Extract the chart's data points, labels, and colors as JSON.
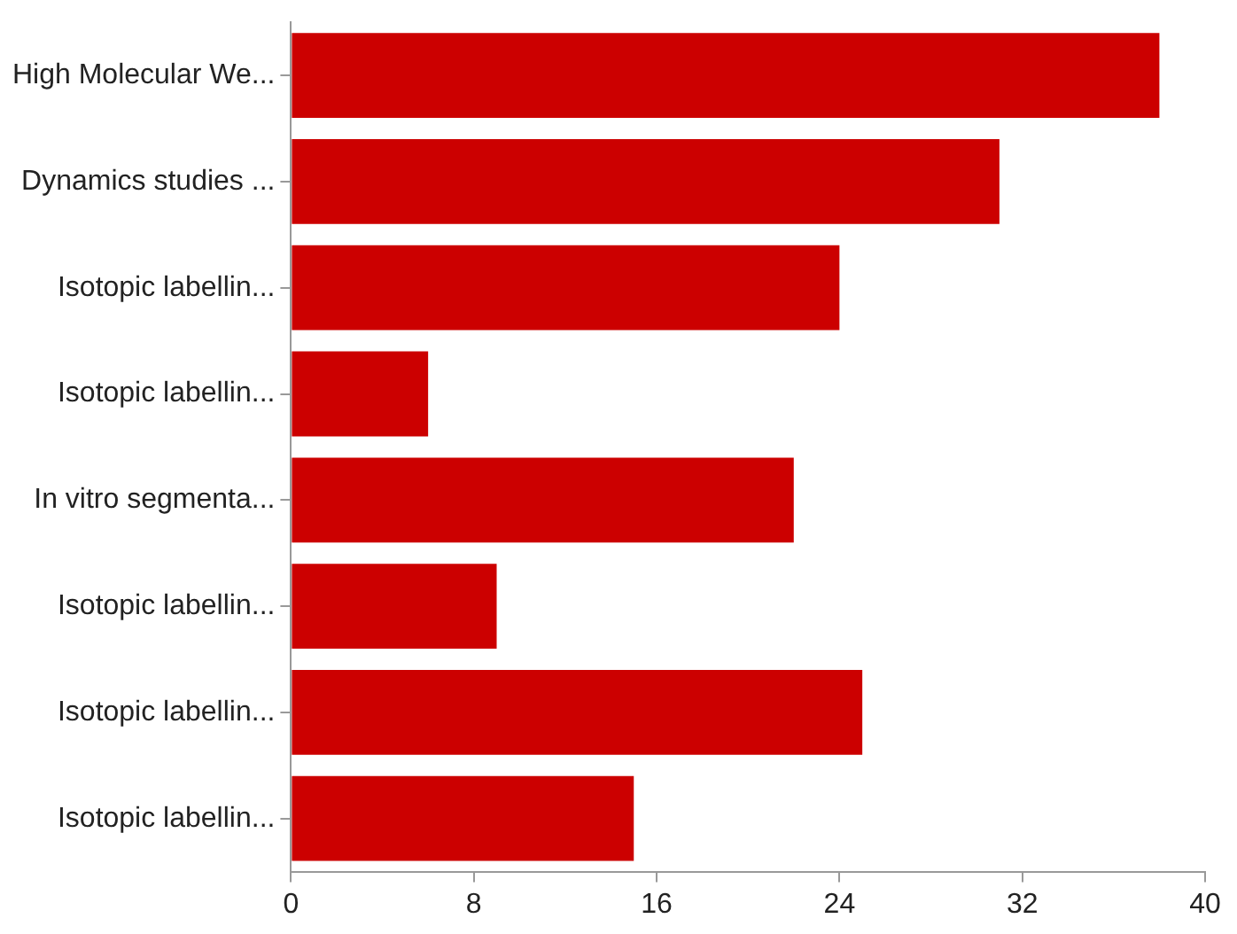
{
  "chart_data": {
    "type": "bar",
    "orientation": "horizontal",
    "categories": [
      "High Molecular We...",
      "Dynamics studies ...",
      "Isotopic labellin...",
      "Isotopic labellin...",
      "In vitro segmenta...",
      "Isotopic labellin...",
      "Isotopic labellin...",
      "Isotopic labellin..."
    ],
    "values": [
      38,
      31,
      24,
      6,
      22,
      9,
      25,
      15
    ],
    "color": "#cc0000",
    "xlim": [
      0,
      40
    ],
    "xticks": [
      0,
      8,
      16,
      24,
      32,
      40
    ],
    "grid": false,
    "legend": false
  }
}
